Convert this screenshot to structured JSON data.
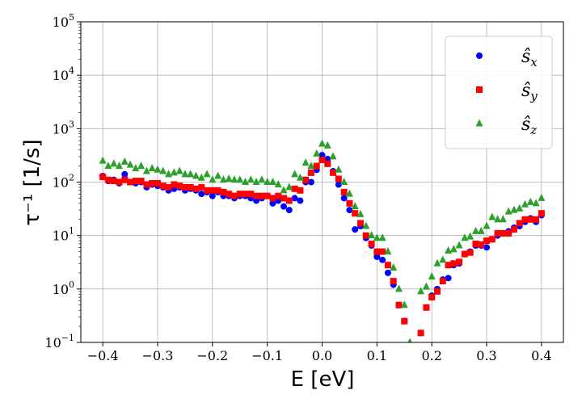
{
  "chart_data": {
    "type": "scatter",
    "xlabel": "E [eV]",
    "ylabel": "τ⁻¹ [1/s]",
    "xlim": [
      -0.44,
      0.44
    ],
    "ylim_log10": [
      -1,
      5
    ],
    "yscale": "log",
    "grid": true,
    "legend_position": "top-right",
    "x_ticks": [
      -0.4,
      -0.3,
      -0.2,
      -0.1,
      0.0,
      0.1,
      0.2,
      0.3,
      0.4
    ],
    "x_tick_labels": [
      "−0.4",
      "−0.3",
      "−0.2",
      "−0.1",
      "0.0",
      "0.1",
      "0.2",
      "0.3",
      "0.4"
    ],
    "y_tick_exponents": [
      -1,
      0,
      1,
      2,
      3,
      4,
      5
    ],
    "y_tick_base": "10",
    "series": [
      {
        "name": "ŝx",
        "legend_base": "ŝ",
        "legend_sub": "x",
        "marker": "circle",
        "color": "#0000ff",
        "x": [
          -0.4,
          -0.39,
          -0.38,
          -0.37,
          -0.36,
          -0.35,
          -0.34,
          -0.33,
          -0.32,
          -0.31,
          -0.3,
          -0.29,
          -0.28,
          -0.27,
          -0.26,
          -0.25,
          -0.24,
          -0.23,
          -0.22,
          -0.21,
          -0.2,
          -0.19,
          -0.18,
          -0.17,
          -0.16,
          -0.15,
          -0.14,
          -0.13,
          -0.12,
          -0.11,
          -0.1,
          -0.09,
          -0.08,
          -0.07,
          -0.06,
          -0.05,
          -0.04,
          -0.03,
          -0.02,
          -0.01,
          0.0,
          0.01,
          0.02,
          0.03,
          0.04,
          0.05,
          0.06,
          0.07,
          0.08,
          0.09,
          0.1,
          0.11,
          0.12,
          0.13,
          0.14,
          0.15,
          0.18,
          0.19,
          0.2,
          0.21,
          0.22,
          0.23,
          0.24,
          0.25,
          0.26,
          0.27,
          0.28,
          0.29,
          0.3,
          0.31,
          0.32,
          0.33,
          0.34,
          0.35,
          0.36,
          0.37,
          0.38,
          0.39,
          0.4
        ],
        "y": [
          130,
          105,
          110,
          95,
          140,
          100,
          95,
          100,
          80,
          90,
          85,
          80,
          70,
          75,
          80,
          70,
          75,
          70,
          60,
          65,
          55,
          65,
          55,
          55,
          50,
          55,
          55,
          50,
          45,
          50,
          55,
          40,
          45,
          35,
          30,
          50,
          45,
          100,
          100,
          170,
          320,
          270,
          160,
          90,
          50,
          30,
          13,
          15,
          9,
          6.5,
          4,
          3.5,
          2,
          1.2,
          0.5,
          0.25,
          0.15,
          0.45,
          0.75,
          1.0,
          1.5,
          1.6,
          2.8,
          3.0,
          4.5,
          5.0,
          6.5,
          6.5,
          6.0,
          8.5,
          10,
          11,
          12,
          14,
          15,
          18,
          21,
          18,
          24
        ]
      },
      {
        "name": "ŝy",
        "legend_base": "ŝ",
        "legend_sub": "y",
        "marker": "square",
        "color": "#ff0000",
        "x": [
          -0.4,
          -0.39,
          -0.38,
          -0.37,
          -0.36,
          -0.35,
          -0.34,
          -0.33,
          -0.32,
          -0.31,
          -0.3,
          -0.29,
          -0.28,
          -0.27,
          -0.26,
          -0.25,
          -0.24,
          -0.23,
          -0.22,
          -0.21,
          -0.2,
          -0.19,
          -0.18,
          -0.17,
          -0.16,
          -0.15,
          -0.14,
          -0.13,
          -0.12,
          -0.11,
          -0.1,
          -0.09,
          -0.08,
          -0.07,
          -0.06,
          -0.05,
          -0.04,
          -0.03,
          -0.02,
          -0.01,
          0.0,
          0.01,
          0.02,
          0.03,
          0.04,
          0.05,
          0.06,
          0.07,
          0.08,
          0.09,
          0.1,
          0.11,
          0.12,
          0.13,
          0.14,
          0.15,
          0.18,
          0.19,
          0.2,
          0.21,
          0.22,
          0.23,
          0.24,
          0.25,
          0.26,
          0.27,
          0.28,
          0.29,
          0.3,
          0.31,
          0.32,
          0.33,
          0.34,
          0.35,
          0.36,
          0.37,
          0.38,
          0.39,
          0.4
        ],
        "y": [
          125,
          110,
          105,
          100,
          110,
          100,
          105,
          105,
          90,
          95,
          95,
          85,
          80,
          90,
          85,
          80,
          80,
          75,
          80,
          70,
          70,
          70,
          65,
          60,
          55,
          60,
          60,
          60,
          55,
          55,
          55,
          50,
          55,
          50,
          45,
          75,
          70,
          110,
          150,
          200,
          260,
          220,
          150,
          115,
          65,
          40,
          26,
          17,
          10,
          7,
          5,
          5,
          2.8,
          1.4,
          0.5,
          0.25,
          0.15,
          0.45,
          0.7,
          0.9,
          1.4,
          2.8,
          3.0,
          3.2,
          4.5,
          4.8,
          7.0,
          6.8,
          8.0,
          8.5,
          11,
          11,
          11,
          13,
          17,
          20,
          20,
          20,
          26
        ]
      },
      {
        "name": "ŝz",
        "legend_base": "ŝ",
        "legend_sub": "z",
        "marker": "triangle",
        "color": "#2ca02c",
        "x": [
          -0.4,
          -0.39,
          -0.38,
          -0.37,
          -0.36,
          -0.35,
          -0.34,
          -0.33,
          -0.32,
          -0.31,
          -0.3,
          -0.29,
          -0.28,
          -0.27,
          -0.26,
          -0.25,
          -0.24,
          -0.23,
          -0.22,
          -0.21,
          -0.2,
          -0.19,
          -0.18,
          -0.17,
          -0.16,
          -0.15,
          -0.14,
          -0.13,
          -0.12,
          -0.11,
          -0.1,
          -0.09,
          -0.08,
          -0.07,
          -0.06,
          -0.05,
          -0.04,
          -0.03,
          -0.02,
          -0.01,
          0.0,
          0.01,
          0.02,
          0.03,
          0.04,
          0.05,
          0.06,
          0.07,
          0.08,
          0.09,
          0.1,
          0.11,
          0.12,
          0.13,
          0.14,
          0.15,
          0.16,
          0.18,
          0.19,
          0.2,
          0.21,
          0.22,
          0.23,
          0.24,
          0.25,
          0.26,
          0.27,
          0.28,
          0.29,
          0.3,
          0.31,
          0.32,
          0.33,
          0.34,
          0.35,
          0.36,
          0.37,
          0.38,
          0.39,
          0.4
        ],
        "y": [
          250,
          200,
          220,
          200,
          240,
          210,
          180,
          200,
          160,
          180,
          170,
          160,
          140,
          150,
          160,
          140,
          140,
          130,
          120,
          140,
          110,
          130,
          110,
          115,
          110,
          110,
          100,
          110,
          100,
          110,
          100,
          100,
          90,
          70,
          80,
          140,
          120,
          230,
          200,
          340,
          520,
          480,
          300,
          170,
          100,
          60,
          35,
          25,
          15,
          10,
          9,
          9,
          5,
          2.5,
          1.0,
          0.5,
          0.1,
          0.9,
          1.1,
          1.7,
          3.0,
          3.5,
          5.2,
          5.5,
          6.5,
          9.0,
          9.5,
          12,
          12,
          15,
          22,
          20,
          20,
          28,
          30,
          32,
          38,
          42,
          40,
          50
        ]
      }
    ]
  }
}
